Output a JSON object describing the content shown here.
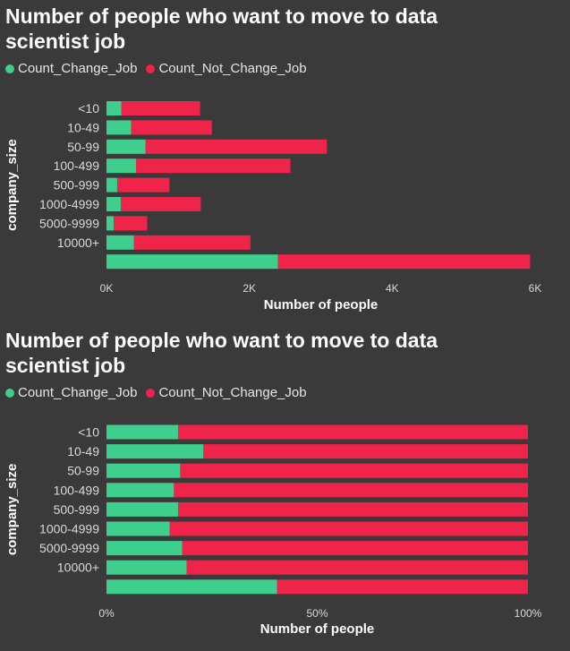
{
  "colors": {
    "change": "#3ecf8e",
    "not_change": "#f0234a",
    "background": "#3a3a3a",
    "text": "#ffffff",
    "tick_text": "#d9d9d9"
  },
  "legend": {
    "change_label": "Count_Change_Job",
    "not_change_label": "Count_Not_Change_Job"
  },
  "chart_data": [
    {
      "type": "bar",
      "orientation": "horizontal",
      "stacked": true,
      "title": "Number of people who want to move to data scientist job",
      "xlabel": "Number of people",
      "ylabel": "company_size",
      "categories": [
        "<10",
        "10-49",
        "50-99",
        "100-499",
        "500-999",
        "1000-4999",
        "5000-9999",
        "10000+",
        ""
      ],
      "series": [
        {
          "name": "Count_Change_Job",
          "values": [
            210,
            345,
            545,
            415,
            150,
            200,
            100,
            385,
            2400
          ]
        },
        {
          "name": "Count_Not_Change_Job",
          "values": [
            1100,
            1130,
            2540,
            2160,
            730,
            1120,
            470,
            1630,
            3530
          ]
        }
      ],
      "xlim": [
        0,
        6000
      ],
      "xticks": [
        0,
        2000,
        4000,
        6000
      ],
      "xtick_labels": [
        "0K",
        "2K",
        "4K",
        "6K"
      ],
      "grid": false,
      "legend_position": "top-left"
    },
    {
      "type": "bar",
      "orientation": "horizontal",
      "stacked": true,
      "normalized": true,
      "title": "Number of people who want to move to data scientist job",
      "xlabel": "Number of people",
      "ylabel": "company_size",
      "categories": [
        "<10",
        "10-49",
        "50-99",
        "100-499",
        "500-999",
        "1000-4999",
        "5000-9999",
        "10000+",
        ""
      ],
      "series": [
        {
          "name": "Count_Change_Job",
          "values": [
            17,
            23,
            17.5,
            16,
            17,
            15,
            18,
            19,
            40.5
          ]
        },
        {
          "name": "Count_Not_Change_Job",
          "values": [
            83,
            77,
            82.5,
            84,
            83,
            85,
            82,
            81,
            59.5
          ]
        }
      ],
      "xlim": [
        0,
        100
      ],
      "xticks": [
        0,
        50,
        100
      ],
      "xtick_labels": [
        "0%",
        "50%",
        "100%"
      ],
      "grid": false,
      "legend_position": "top-left"
    }
  ]
}
